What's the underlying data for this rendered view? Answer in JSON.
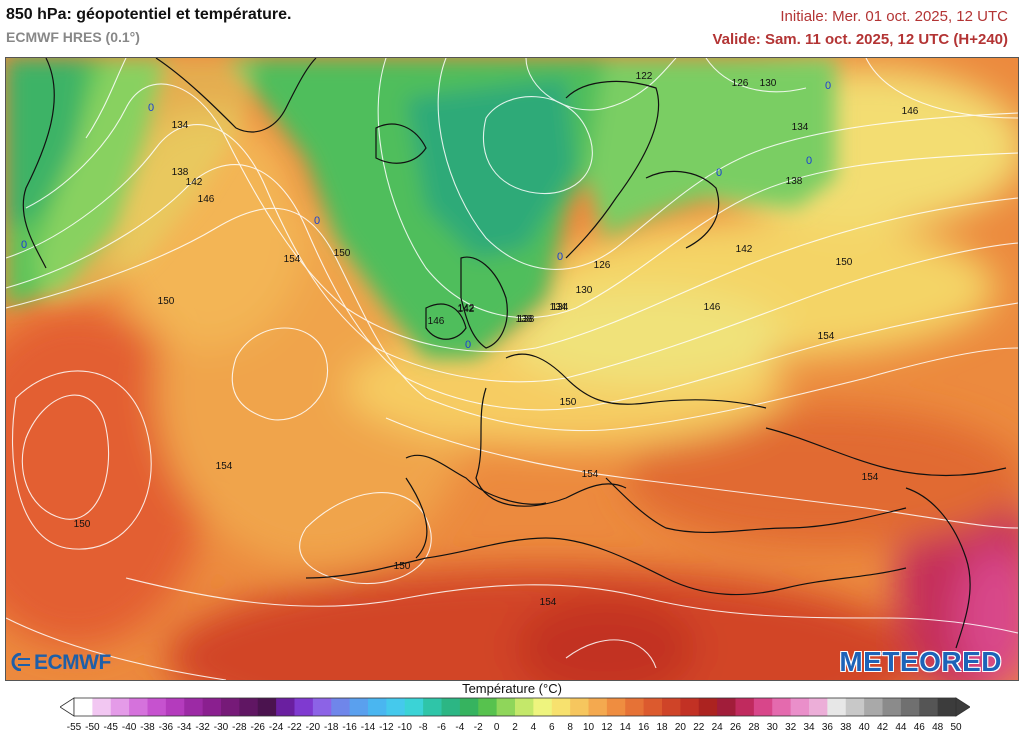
{
  "header": {
    "title": "850 hPa: géopotentiel et température.",
    "model": "ECMWF HRES (0.1°)",
    "init": "Initiale: Mer. 01 oct. 2025, 12 UTC",
    "valid": "Valide: Sam. 11 oct. 2025, 12 UTC (H+240)"
  },
  "legend": {
    "title": "Température (°C)",
    "values": [
      -55,
      -50,
      -45,
      -40,
      -38,
      -36,
      -34,
      -32,
      -30,
      -28,
      -26,
      -24,
      -22,
      -20,
      -18,
      -16,
      -14,
      -12,
      -10,
      -8,
      -6,
      -4,
      -2,
      0,
      2,
      4,
      6,
      8,
      10,
      12,
      14,
      16,
      18,
      20,
      22,
      24,
      26,
      28,
      30,
      32,
      34,
      36,
      38,
      40,
      42,
      44,
      46,
      48,
      50
    ],
    "colors": [
      "#ffffff",
      "#f2c7f2",
      "#e49be8",
      "#d572dc",
      "#c652cf",
      "#b43bbd",
      "#9c2aa5",
      "#8a1f8f",
      "#761a78",
      "#601663",
      "#4b134f",
      "#6a1fa0",
      "#7f3ad0",
      "#8c63e6",
      "#6f86ea",
      "#5aa0ee",
      "#4ab6f0",
      "#45c9ec",
      "#3bd3d6",
      "#2fc5a8",
      "#2cb684",
      "#36b35f",
      "#57c24e",
      "#8fd65a",
      "#c4e86a",
      "#eef47e",
      "#f7e16e",
      "#f6c65e",
      "#f4a94f",
      "#ef8d40",
      "#e67236",
      "#dc5a2e",
      "#cf4428",
      "#c23124",
      "#ac2320",
      "#a11d3a",
      "#c02a5e",
      "#d8468a",
      "#e46aae",
      "#ea8fca",
      "#ecaed8",
      "#e7e7e7",
      "#c8c8c8",
      "#a9a9a9",
      "#8b8b8b",
      "#707070",
      "#555555",
      "#3c3c3c"
    ]
  },
  "map": {
    "contour_labels": [
      "122",
      "126",
      "130",
      "134",
      "138",
      "142",
      "146",
      "150",
      "154",
      "134",
      "138",
      "142",
      "146",
      "150",
      "150",
      "154",
      "150",
      "154",
      "150",
      "154",
      "126",
      "130",
      "134",
      "138",
      "142",
      "146",
      "154",
      "138",
      "142",
      "146",
      "150",
      "154",
      "134"
    ],
    "frost_labels": [
      "0",
      "0",
      "0",
      "0",
      "0",
      "0",
      "0",
      "0"
    ]
  },
  "logos": {
    "left": "ECMWF",
    "right": "METEORED"
  }
}
